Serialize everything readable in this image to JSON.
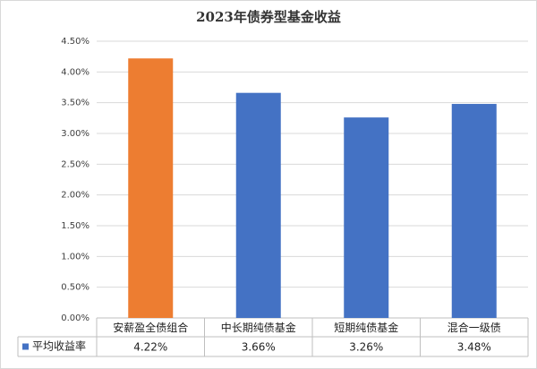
{
  "chart_data": {
    "type": "bar",
    "title": "2023年债券型基金收益",
    "categories": [
      "安薪盈全债组合",
      "中长期纯债基金",
      "短期纯债基金",
      "混合一级债"
    ],
    "series": [
      {
        "name": "平均收益率",
        "color": "#4472c4",
        "colors": [
          "#ed7d31",
          "#4472c4",
          "#4472c4",
          "#4472c4"
        ],
        "values": [
          4.22,
          3.66,
          3.26,
          3.48
        ],
        "value_labels": [
          "4.22%",
          "3.66%",
          "3.26%",
          "3.48%"
        ]
      }
    ],
    "ylim": [
      0,
      4.5
    ],
    "yticks": [
      {
        "value": 0,
        "label": "0.00%"
      },
      {
        "value": 0.5,
        "label": "0.50%"
      },
      {
        "value": 1,
        "label": "1.00%"
      },
      {
        "value": 1.5,
        "label": "1.50%"
      },
      {
        "value": 2,
        "label": "2.00%"
      },
      {
        "value": 2.5,
        "label": "2.50%"
      },
      {
        "value": 3,
        "label": "3.00%"
      },
      {
        "value": 3.5,
        "label": "3.50%"
      },
      {
        "value": 4,
        "label": "4.00%"
      },
      {
        "value": 4.5,
        "label": "4.50%"
      }
    ],
    "grid": true
  }
}
